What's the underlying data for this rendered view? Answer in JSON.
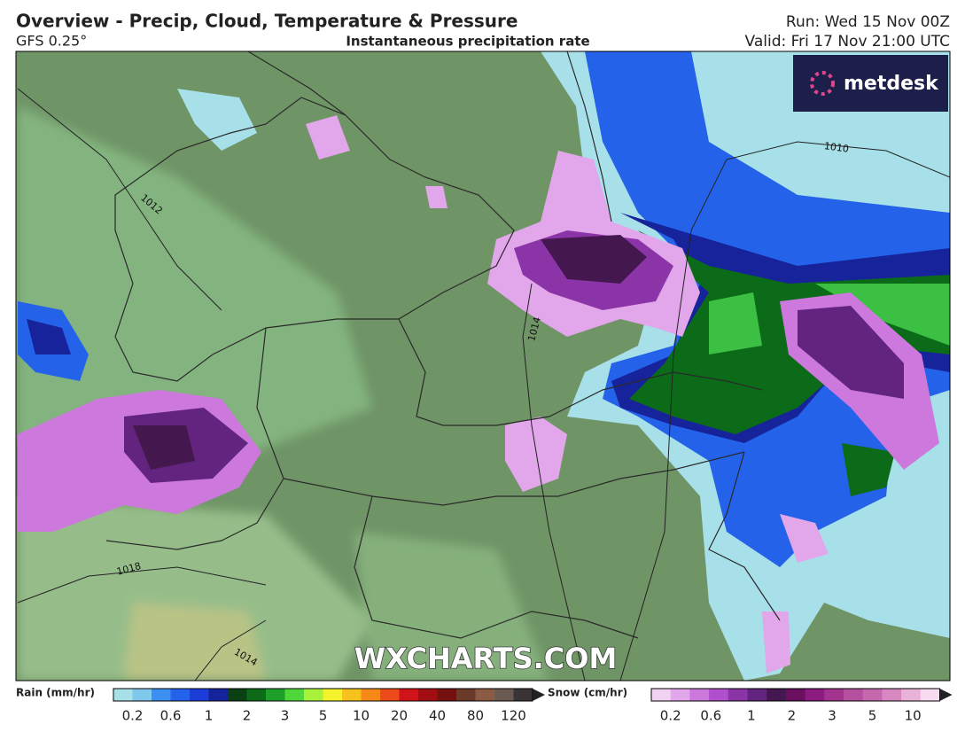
{
  "header": {
    "title": "Overview - Precip, Cloud, Temperature & Pressure",
    "model": "GFS 0.25°",
    "subtitle": "Instantaneous precipitation rate",
    "run": "Run: Wed 15 Nov 00Z",
    "valid": "Valid: Fri 17 Nov 21:00 UTC"
  },
  "logo": "metdesk",
  "watermark": "WXCHARTS.COM",
  "isobars": [
    "1012",
    "1014",
    "1010",
    "1018",
    "1014"
  ],
  "legend": {
    "rain": {
      "label": "Rain (mm/hr)",
      "ticks": [
        0.2,
        0.6,
        1,
        2,
        3,
        5,
        10,
        20,
        40,
        80,
        120
      ],
      "colors": [
        "#a8e0ea",
        "#7fc8ec",
        "#3a8ff0",
        "#2462ea",
        "#1c3ed8",
        "#16239a",
        "#0b3f14",
        "#0b6b18",
        "#1ea12a",
        "#4fd63a",
        "#a8f03a",
        "#f4f22a",
        "#f7c21e",
        "#f6881a",
        "#ec4a1a",
        "#d2141a",
        "#a20e14",
        "#741010",
        "#6a3a2a",
        "#8a5a44",
        "#6b5a52",
        "#3a3434"
      ]
    },
    "snow": {
      "label": "Snow (cm/hr)",
      "ticks": [
        0.2,
        0.6,
        1,
        2,
        3,
        5,
        10
      ],
      "colors": [
        "#f2d2f2",
        "#e2a6ea",
        "#cc78dc",
        "#b050cc",
        "#8a34a8",
        "#62247e",
        "#44184e",
        "#6a1060",
        "#8c1a80",
        "#a0348e",
        "#b4509e",
        "#c46aac",
        "#d888c0",
        "#eab2d8",
        "#f6dcee"
      ]
    }
  }
}
